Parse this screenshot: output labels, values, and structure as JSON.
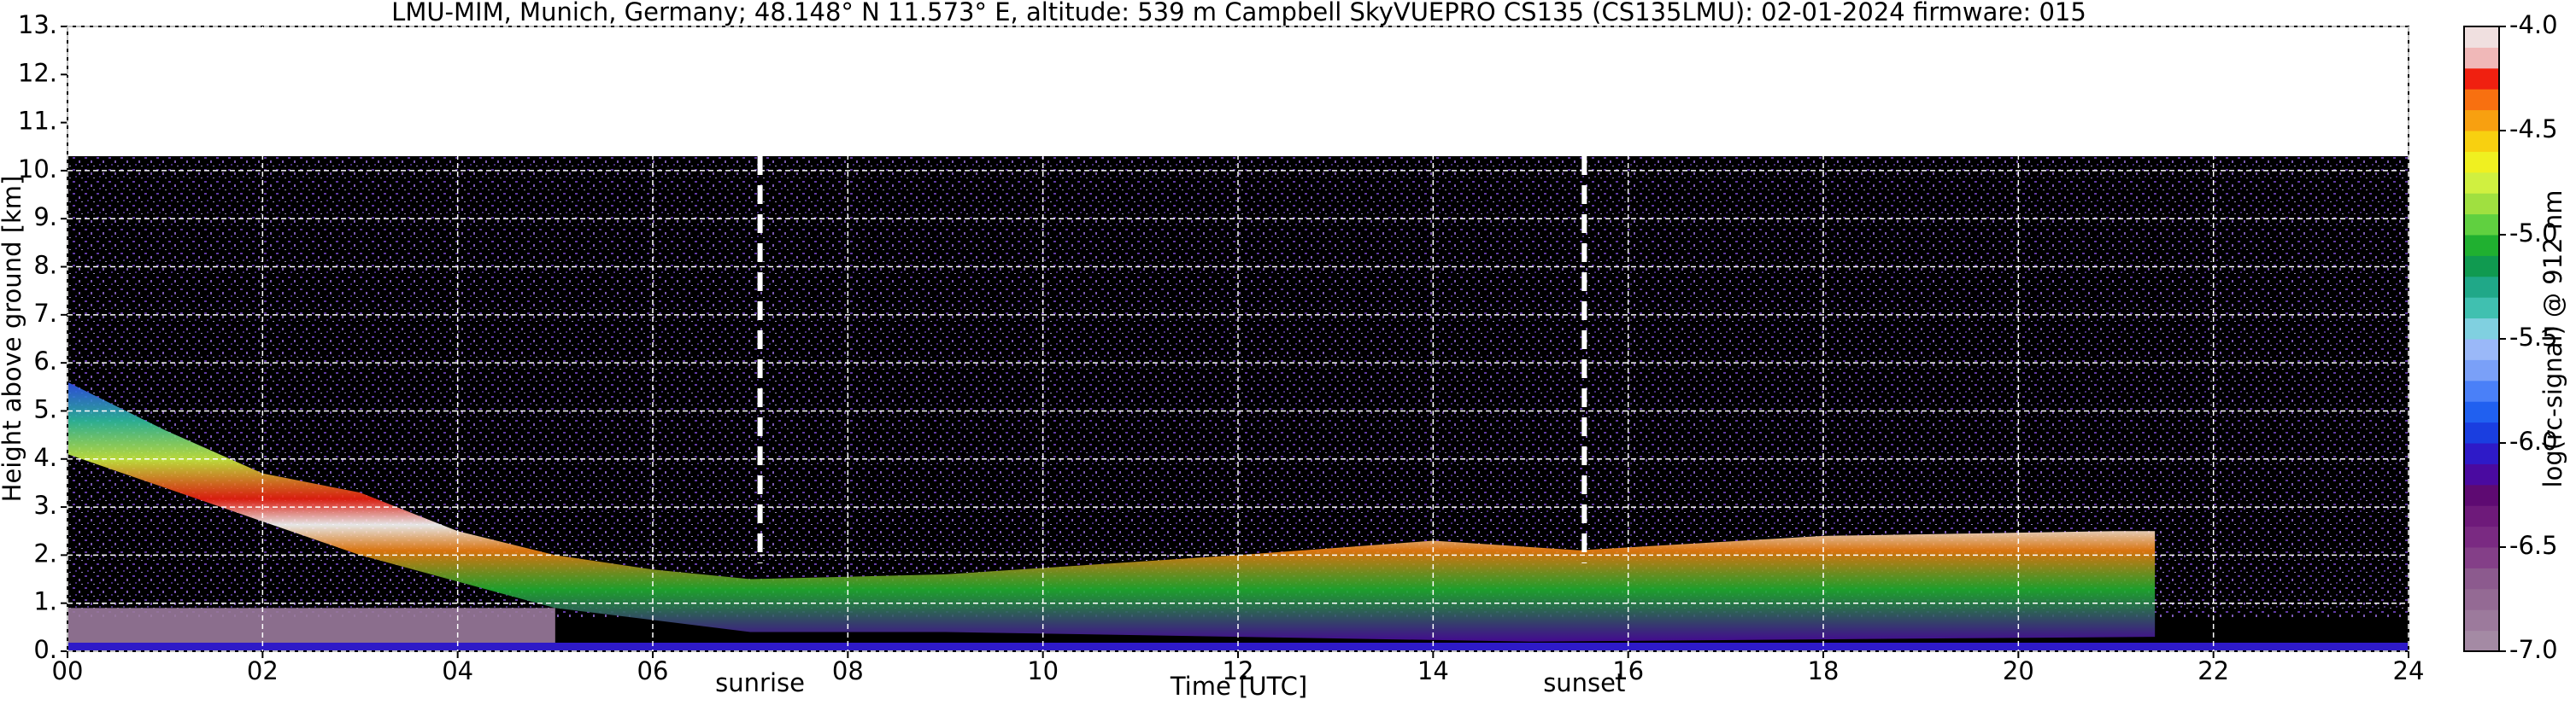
{
  "chart_data": {
    "type": "heatmap",
    "title": "LMU-MIM, Munich, Germany; 48.148° N 11.573° E, altitude: 539 m    Campbell SkyVUEPRO CS135 (CS135LMU): 02-01-2024    firmware: 015",
    "x_label": "Time [UTC]",
    "y_label": "Height above ground [km]",
    "xlim": [
      0,
      24
    ],
    "xticks": [
      {
        "value": 0,
        "label": "00"
      },
      {
        "value": 2,
        "label": "02"
      },
      {
        "value": 4,
        "label": "04"
      },
      {
        "value": 6,
        "label": "06"
      },
      {
        "value": 8,
        "label": "08"
      },
      10,
      12,
      14,
      16,
      18,
      20,
      22,
      24
    ],
    "ylim": [
      0,
      13
    ],
    "yticks": [
      {
        "value": 0,
        "label": "0."
      },
      {
        "value": 1,
        "label": "1."
      },
      {
        "value": 2,
        "label": "2."
      },
      {
        "value": 3,
        "label": "3."
      },
      {
        "value": 4,
        "label": "4."
      },
      {
        "value": 5,
        "label": "5."
      },
      {
        "value": 6,
        "label": "6."
      },
      {
        "value": 7,
        "label": "7."
      },
      {
        "value": 8,
        "label": "8."
      },
      {
        "value": 9,
        "label": "9."
      },
      {
        "value": 10,
        "label": "10."
      },
      {
        "value": 11,
        "label": "11."
      },
      {
        "value": 12,
        "label": "12."
      },
      {
        "value": 13,
        "label": "13."
      }
    ],
    "grid": true,
    "annotations": [
      {
        "text": "sunrise",
        "x": 7.1
      },
      {
        "text": "sunset",
        "x": 15.55
      }
    ],
    "colorbar": {
      "label": "log(rc-signal) @ 912 nm",
      "lim": [
        -7,
        -4
      ],
      "ticks": [
        {
          "value": -7,
          "label": "-7.0"
        },
        {
          "value": -6.5,
          "label": "-6.5"
        },
        {
          "value": -6,
          "label": "-6.0"
        },
        {
          "value": -5.5,
          "label": "-5.5"
        },
        {
          "value": -5,
          "label": "-5.0"
        },
        {
          "value": -4.5,
          "label": "-4.5"
        },
        {
          "value": -4,
          "label": "-4.0"
        }
      ],
      "colors": [
        "#a48aa4",
        "#9c7a9c",
        "#946a94",
        "#8c5a8e",
        "#843f88",
        "#7a2a82",
        "#6e1a7a",
        "#5e0a72",
        "#4a0aa0",
        "#2e1ac8",
        "#1a3ee0",
        "#2060f0",
        "#4a80f8",
        "#7aa0f8",
        "#9ab8f8",
        "#80d0e0",
        "#40c0b0",
        "#20a888",
        "#109a50",
        "#20b030",
        "#60d040",
        "#a0e040",
        "#d0f040",
        "#f0f020",
        "#f8d010",
        "#f8a010",
        "#f87010",
        "#f02010",
        "#f0b8b8",
        "#f0e0e0"
      ]
    }
  }
}
